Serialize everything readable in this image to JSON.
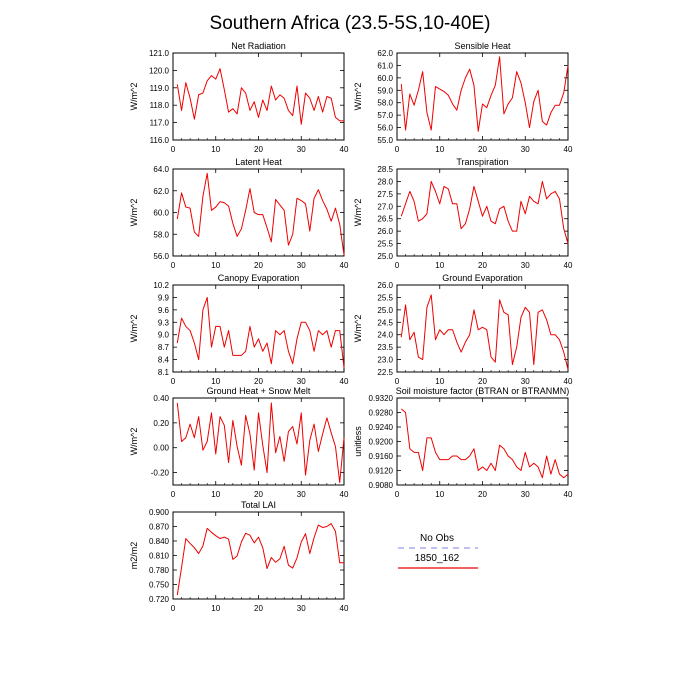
{
  "figure": {
    "title": "Southern Africa (23.5-5S,10-40E)"
  },
  "colors": {
    "obs_line": "#9999ee",
    "model_line": "#ee0000"
  },
  "legend": {
    "obs_label": "No Obs",
    "model_label": "1850_162"
  },
  "chart_data": [
    {
      "type": "line",
      "title": "Net Radiation",
      "ylabel": "W/m^2",
      "xlabel": "",
      "xlim": [
        0,
        40
      ],
      "ylim": [
        116.0,
        121.0
      ],
      "xticks": [
        0,
        10,
        20,
        30,
        40
      ],
      "yticks": [
        "116.0",
        "117.0",
        "118.0",
        "119.0",
        "120.0",
        "121.0"
      ],
      "x": [
        1,
        2,
        3,
        4,
        5,
        6,
        7,
        8,
        9,
        10,
        11,
        12,
        13,
        14,
        15,
        16,
        17,
        18,
        19,
        20,
        21,
        22,
        23,
        24,
        25,
        26,
        27,
        28,
        29,
        30,
        31,
        32,
        33,
        34,
        35,
        36,
        37,
        38,
        39,
        40
      ],
      "series": [
        {
          "name": "1850_162",
          "values": [
            119.2,
            117.7,
            119.3,
            118.4,
            117.2,
            118.6,
            118.7,
            119.4,
            119.7,
            119.5,
            120.1,
            118.9,
            117.6,
            117.8,
            117.5,
            119.0,
            118.7,
            117.7,
            118.2,
            117.3,
            118.3,
            117.7,
            119.1,
            118.3,
            118.6,
            118.4,
            117.7,
            117.4,
            119.1,
            116.9,
            118.7,
            118.4,
            117.7,
            118.5,
            117.6,
            118.5,
            118.4,
            117.3,
            117.1,
            117.1
          ]
        }
      ]
    },
    {
      "type": "line",
      "title": "Sensible Heat",
      "ylabel": "W/m^2",
      "xlabel": "",
      "xlim": [
        0,
        40
      ],
      "ylim": [
        55.0,
        62.0
      ],
      "xticks": [
        0,
        10,
        20,
        30,
        40
      ],
      "yticks": [
        "55.0",
        "56.0",
        "57.0",
        "58.0",
        "59.0",
        "60.0",
        "61.0",
        "62.0"
      ],
      "x": [
        1,
        2,
        3,
        4,
        5,
        6,
        7,
        8,
        9,
        10,
        11,
        12,
        13,
        14,
        15,
        16,
        17,
        18,
        19,
        20,
        21,
        22,
        23,
        24,
        25,
        26,
        27,
        28,
        29,
        30,
        31,
        32,
        33,
        34,
        35,
        36,
        37,
        38,
        39,
        40
      ],
      "series": [
        {
          "name": "1850_162",
          "values": [
            59.5,
            55.8,
            58.7,
            57.8,
            59.0,
            60.5,
            57.2,
            55.8,
            59.3,
            59.1,
            58.9,
            58.6,
            57.9,
            57.4,
            59.0,
            60.0,
            60.7,
            59.4,
            55.7,
            57.9,
            57.6,
            58.6,
            59.4,
            61.7,
            57.1,
            57.9,
            58.4,
            60.5,
            59.6,
            58.0,
            56.0,
            58.1,
            59.0,
            56.5,
            56.2,
            57.2,
            57.8,
            57.8,
            58.8,
            61.0
          ]
        }
      ]
    },
    {
      "type": "line",
      "title": "Latent Heat",
      "ylabel": "W/m^2",
      "xlabel": "",
      "xlim": [
        0,
        40
      ],
      "ylim": [
        56.0,
        64.0
      ],
      "xticks": [
        0,
        10,
        20,
        30,
        40
      ],
      "yticks": [
        "56.0",
        "58.0",
        "60.0",
        "62.0",
        "64.0"
      ],
      "x": [
        1,
        2,
        3,
        4,
        5,
        6,
        7,
        8,
        9,
        10,
        11,
        12,
        13,
        14,
        15,
        16,
        17,
        18,
        19,
        20,
        21,
        22,
        23,
        24,
        25,
        26,
        27,
        28,
        29,
        30,
        31,
        32,
        33,
        34,
        35,
        36,
        37,
        38,
        39,
        40
      ],
      "series": [
        {
          "name": "1850_162",
          "values": [
            59.4,
            61.8,
            60.5,
            60.4,
            58.2,
            57.8,
            61.5,
            63.6,
            60.2,
            60.5,
            61.0,
            60.9,
            60.6,
            59.0,
            57.8,
            58.5,
            60.2,
            62.2,
            60.0,
            59.8,
            59.8,
            58.6,
            57.3,
            61.2,
            60.7,
            60.2,
            57.0,
            58.0,
            61.3,
            61.1,
            60.8,
            58.3,
            61.3,
            62.1,
            61.1,
            60.3,
            59.2,
            60.4,
            58.9,
            56.1
          ]
        }
      ]
    },
    {
      "type": "line",
      "title": "Transpiration",
      "ylabel": "W/m^2",
      "xlabel": "",
      "xlim": [
        0,
        40
      ],
      "ylim": [
        25.0,
        28.5
      ],
      "xticks": [
        0,
        10,
        20,
        30,
        40
      ],
      "yticks": [
        "25.0",
        "25.5",
        "26.0",
        "26.5",
        "27.0",
        "27.5",
        "28.0",
        "28.5"
      ],
      "x": [
        1,
        2,
        3,
        4,
        5,
        6,
        7,
        8,
        9,
        10,
        11,
        12,
        13,
        14,
        15,
        16,
        17,
        18,
        19,
        20,
        21,
        22,
        23,
        24,
        25,
        26,
        27,
        28,
        29,
        30,
        31,
        32,
        33,
        34,
        35,
        36,
        37,
        38,
        39,
        40
      ],
      "series": [
        {
          "name": "1850_162",
          "values": [
            26.6,
            27.1,
            27.6,
            27.2,
            26.4,
            26.5,
            26.7,
            28.0,
            27.6,
            27.1,
            27.8,
            27.7,
            27.1,
            27.1,
            26.1,
            26.3,
            26.9,
            27.8,
            27.2,
            26.6,
            27.0,
            26.4,
            26.3,
            26.9,
            27.0,
            26.4,
            26.0,
            26.0,
            27.2,
            26.7,
            27.4,
            27.2,
            27.1,
            28.0,
            27.3,
            27.5,
            27.6,
            27.3,
            26.1,
            25.5
          ]
        }
      ]
    },
    {
      "type": "line",
      "title": "Canopy Evaporation",
      "ylabel": "W/m^2",
      "xlabel": "",
      "xlim": [
        0,
        40
      ],
      "ylim": [
        8.1,
        10.2
      ],
      "xticks": [
        0,
        10,
        20,
        30,
        40
      ],
      "yticks": [
        "8.1",
        "8.4",
        "8.7",
        "9.0",
        "9.3",
        "9.6",
        "9.9",
        "10.2"
      ],
      "x": [
        1,
        2,
        3,
        4,
        5,
        6,
        7,
        8,
        9,
        10,
        11,
        12,
        13,
        14,
        15,
        16,
        17,
        18,
        19,
        20,
        21,
        22,
        23,
        24,
        25,
        26,
        27,
        28,
        29,
        30,
        31,
        32,
        33,
        34,
        35,
        36,
        37,
        38,
        39,
        40
      ],
      "series": [
        {
          "name": "1850_162",
          "values": [
            8.8,
            9.4,
            9.2,
            9.1,
            8.8,
            8.4,
            9.6,
            9.9,
            8.7,
            9.2,
            9.2,
            8.7,
            9.1,
            8.5,
            8.5,
            8.5,
            8.6,
            9.2,
            8.7,
            8.9,
            8.6,
            8.8,
            8.3,
            9.1,
            9.0,
            9.1,
            8.6,
            8.3,
            8.9,
            9.3,
            9.3,
            9.1,
            8.6,
            9.1,
            9.0,
            9.1,
            8.7,
            9.1,
            9.1,
            8.2
          ]
        }
      ]
    },
    {
      "type": "line",
      "title": "Ground Evaporation",
      "ylabel": "W/m^2",
      "xlabel": "",
      "xlim": [
        0,
        40
      ],
      "ylim": [
        22.5,
        26.0
      ],
      "xticks": [
        0,
        10,
        20,
        30,
        40
      ],
      "yticks": [
        "22.5",
        "23.0",
        "23.5",
        "24.0",
        "24.5",
        "25.0",
        "25.5",
        "26.0"
      ],
      "x": [
        1,
        2,
        3,
        4,
        5,
        6,
        7,
        8,
        9,
        10,
        11,
        12,
        13,
        14,
        15,
        16,
        17,
        18,
        19,
        20,
        21,
        22,
        23,
        24,
        25,
        26,
        27,
        28,
        29,
        30,
        31,
        32,
        33,
        34,
        35,
        36,
        37,
        38,
        39,
        40
      ],
      "series": [
        {
          "name": "1850_162",
          "values": [
            23.9,
            25.2,
            23.8,
            24.1,
            23.1,
            23.0,
            25.1,
            25.6,
            23.8,
            24.2,
            24.0,
            24.2,
            24.2,
            23.7,
            23.3,
            23.7,
            24.0,
            25.0,
            24.2,
            24.3,
            24.2,
            23.1,
            22.9,
            25.4,
            24.9,
            24.8,
            22.8,
            23.5,
            24.7,
            25.1,
            24.9,
            22.8,
            24.9,
            25.0,
            24.6,
            24.0,
            24.0,
            23.8,
            23.3,
            22.6
          ]
        }
      ]
    },
    {
      "type": "line",
      "title": "Ground Heat + Snow Melt",
      "ylabel": "W/m^2",
      "xlabel": "",
      "xlim": [
        0,
        40
      ],
      "ylim": [
        -0.3,
        0.4
      ],
      "xticks": [
        0,
        10,
        20,
        30,
        40
      ],
      "yticks": [
        "-0.20",
        "0.00",
        "0.20",
        "0.40"
      ],
      "x": [
        1,
        2,
        3,
        4,
        5,
        6,
        7,
        8,
        9,
        10,
        11,
        12,
        13,
        14,
        15,
        16,
        17,
        18,
        19,
        20,
        21,
        22,
        23,
        24,
        25,
        26,
        27,
        28,
        29,
        30,
        31,
        32,
        33,
        34,
        35,
        36,
        37,
        38,
        39,
        40
      ],
      "series": [
        {
          "name": "1850_162",
          "values": [
            0.36,
            0.05,
            0.08,
            0.19,
            0.08,
            0.25,
            -0.02,
            0.05,
            0.28,
            -0.05,
            0.25,
            0.18,
            -0.12,
            0.22,
            0.01,
            -0.14,
            0.26,
            0.11,
            -0.18,
            0.28,
            0.02,
            -0.2,
            0.36,
            -0.04,
            0.09,
            -0.11,
            0.13,
            0.17,
            0.03,
            0.28,
            -0.22,
            0.06,
            0.19,
            -0.03,
            0.11,
            0.24,
            0.12,
            0.01,
            -0.28,
            0.08
          ]
        }
      ]
    },
    {
      "type": "line",
      "title": "Soil moisture factor (BTRAN or BTRANMN)",
      "ylabel": "unitless",
      "xlabel": "",
      "xlim": [
        0,
        40
      ],
      "ylim": [
        0.908,
        0.932
      ],
      "xticks": [
        0,
        10,
        20,
        30,
        40
      ],
      "yticks": [
        "0.9080",
        "0.9120",
        "0.9160",
        "0.9200",
        "0.9240",
        "0.9280",
        "0.9320"
      ],
      "x": [
        1,
        2,
        3,
        4,
        5,
        6,
        7,
        8,
        9,
        10,
        11,
        12,
        13,
        14,
        15,
        16,
        17,
        18,
        19,
        20,
        21,
        22,
        23,
        24,
        25,
        26,
        27,
        28,
        29,
        30,
        31,
        32,
        33,
        34,
        35,
        36,
        37,
        38,
        39,
        40
      ],
      "series": [
        {
          "name": "1850_162",
          "values": [
            0.929,
            0.928,
            0.918,
            0.917,
            0.917,
            0.912,
            0.921,
            0.921,
            0.917,
            0.915,
            0.915,
            0.915,
            0.916,
            0.916,
            0.915,
            0.915,
            0.916,
            0.918,
            0.912,
            0.913,
            0.912,
            0.914,
            0.912,
            0.919,
            0.918,
            0.916,
            0.915,
            0.913,
            0.912,
            0.917,
            0.913,
            0.914,
            0.913,
            0.91,
            0.916,
            0.911,
            0.915,
            0.911,
            0.91,
            0.911
          ]
        }
      ]
    },
    {
      "type": "line",
      "title": "Total LAI",
      "ylabel": "m2/m2",
      "xlabel": "",
      "xlim": [
        0,
        40
      ],
      "ylim": [
        0.72,
        0.9
      ],
      "xticks": [
        0,
        10,
        20,
        30,
        40
      ],
      "yticks": [
        "0.720",
        "0.750",
        "0.780",
        "0.810",
        "0.840",
        "0.870",
        "0.900"
      ],
      "x": [
        1,
        2,
        3,
        4,
        5,
        6,
        7,
        8,
        9,
        10,
        11,
        12,
        13,
        14,
        15,
        16,
        17,
        18,
        19,
        20,
        21,
        22,
        23,
        24,
        25,
        26,
        27,
        28,
        29,
        30,
        31,
        32,
        33,
        34,
        35,
        36,
        37,
        38,
        39,
        40
      ],
      "series": [
        {
          "name": "1850_162",
          "values": [
            0.728,
            0.785,
            0.845,
            0.835,
            0.826,
            0.814,
            0.83,
            0.866,
            0.858,
            0.851,
            0.845,
            0.848,
            0.844,
            0.802,
            0.809,
            0.838,
            0.856,
            0.852,
            0.836,
            0.848,
            0.826,
            0.783,
            0.806,
            0.796,
            0.803,
            0.829,
            0.79,
            0.784,
            0.805,
            0.838,
            0.855,
            0.814,
            0.847,
            0.873,
            0.868,
            0.87,
            0.876,
            0.86,
            0.795,
            0.795
          ]
        }
      ]
    }
  ]
}
